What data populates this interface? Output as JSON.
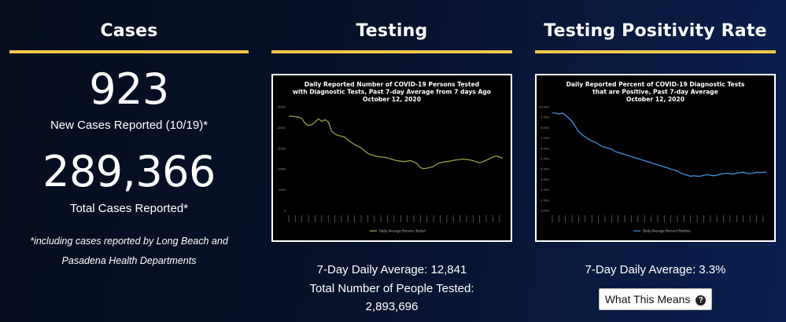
{
  "cases": {
    "title": "Cases",
    "new_cases": "923",
    "new_cases_label": "New Cases Reported (10/19)*",
    "total_cases": "289,366",
    "total_cases_label": "Total Cases Reported*",
    "footnote_line1": "*including cases reported by Long Beach and",
    "footnote_line2": "Pasadena Health Departments"
  },
  "testing": {
    "title": "Testing",
    "average_label": "7-Day Daily Average: 12,841",
    "total_label": "Total Number of People Tested:",
    "total_value": "2,893,696"
  },
  "positivity": {
    "title": "Testing Positivity Rate",
    "average_label": "7-Day Daily Average: 3.3%",
    "button_label": "What This Means",
    "button_icon": "question-circle-icon"
  },
  "colors": {
    "accent": "#f5c84d",
    "testing_line": "#8aa644",
    "positivity_line": "#3f8fde",
    "chart_background": "#000000"
  },
  "chart_data": [
    {
      "type": "line",
      "title": "Daily Reported Number of COVID-19 Persons Tested",
      "subtitle": "with Diagnostic Tests, Past 7-day Average from 7 days Ago",
      "date_line": "October 12, 2020",
      "y_ticks": [
        "25000",
        "20000",
        "15000",
        "10000",
        "5000",
        "0"
      ],
      "ylim": [
        0,
        25000
      ],
      "grid": false,
      "legend": "bottom-center",
      "series": [
        {
          "name": "Daily Average Persons Tested",
          "color": "#8aa644",
          "values": [
            22800,
            22700,
            22600,
            22500,
            22200,
            21000,
            20500,
            20700,
            21300,
            22100,
            21500,
            21900,
            21400,
            19200,
            18400,
            18100,
            17900,
            17700,
            17000,
            16400,
            15900,
            15500,
            15100,
            14400,
            13800,
            13400,
            13200,
            13000,
            12900,
            12800,
            12700,
            12400,
            12200,
            12000,
            11900,
            11800,
            11900,
            12000,
            11700,
            11300,
            10300,
            10100,
            10200,
            10400,
            10600,
            11200,
            11500,
            11700,
            11800,
            11900,
            12100,
            12200,
            12300,
            12400,
            12300,
            12200,
            12000,
            11700,
            11500,
            11800,
            12100,
            12500,
            12900,
            13100,
            12900,
            12600
          ]
        }
      ]
    },
    {
      "type": "line",
      "title": "Daily Reported Percent of COVID-19 Diagnostic Tests",
      "subtitle": "that are Positive, Past 7-day Average",
      "date_line": "October 12, 2020",
      "y_ticks": [
        "10.00%",
        "9.00%",
        "8.00%",
        "7.00%",
        "6.00%",
        "5.00%",
        "4.00%",
        "3.00%",
        "2.00%",
        "1.00%",
        "0.00%"
      ],
      "ylim": [
        0,
        10
      ],
      "grid": false,
      "legend": "bottom-center",
      "series": [
        {
          "name": "Daily Average Percent Positive",
          "color": "#3f8fde",
          "values": [
            9.4,
            9.4,
            9.3,
            9.4,
            9.2,
            8.9,
            8.6,
            8.1,
            7.6,
            7.3,
            7.1,
            6.9,
            6.7,
            6.6,
            6.4,
            6.2,
            6.1,
            6.0,
            5.9,
            5.7,
            5.6,
            5.5,
            5.4,
            5.3,
            5.2,
            5.1,
            5.0,
            4.9,
            4.8,
            4.7,
            4.6,
            4.5,
            4.4,
            4.3,
            4.2,
            4.1,
            4.0,
            3.9,
            3.8,
            3.6,
            3.5,
            3.4,
            3.3,
            3.35,
            3.3,
            3.3,
            3.4,
            3.45,
            3.4,
            3.35,
            3.4,
            3.5,
            3.55,
            3.6,
            3.55,
            3.5,
            3.6,
            3.65,
            3.7,
            3.6,
            3.55,
            3.6,
            3.7,
            3.65,
            3.7,
            3.7
          ]
        }
      ]
    }
  ]
}
